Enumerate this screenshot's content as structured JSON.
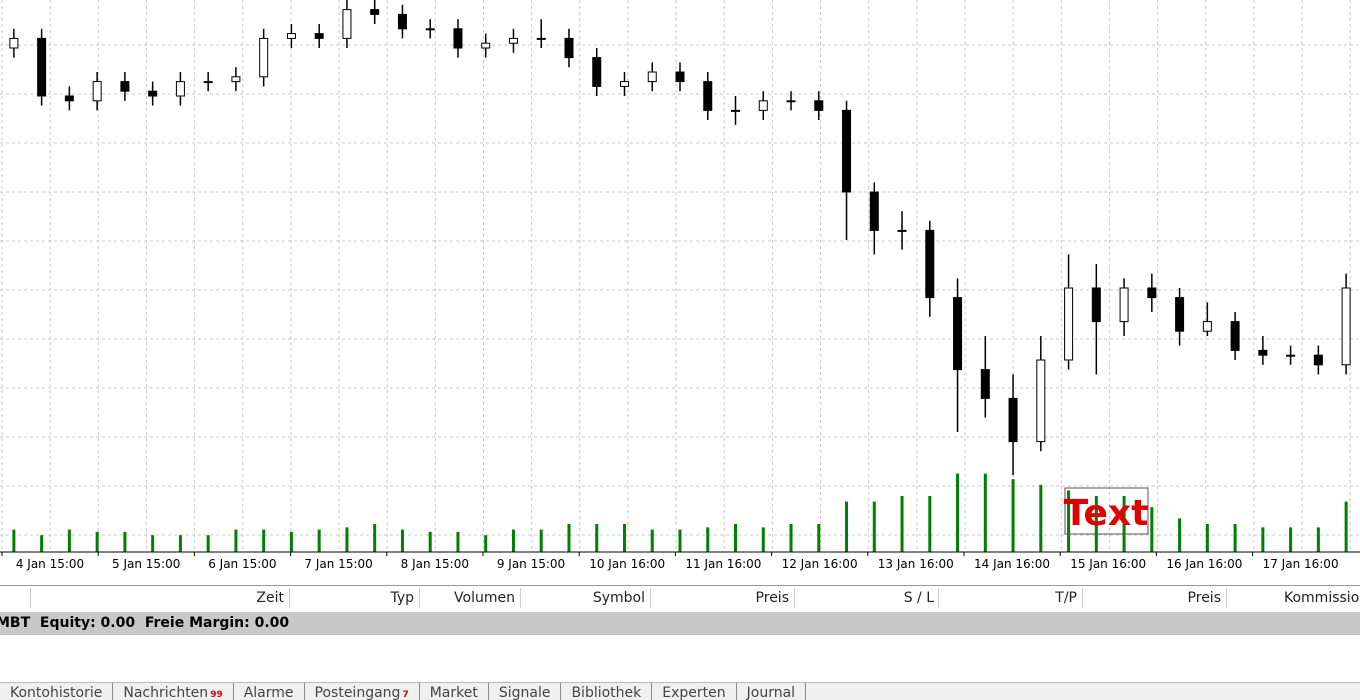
{
  "chart_data": {
    "type": "candlestick",
    "candles": [
      [
        90,
        94,
        88,
        92
      ],
      [
        92,
        94,
        78,
        80
      ],
      [
        80,
        82,
        77,
        79
      ],
      [
        79,
        85,
        77,
        83
      ],
      [
        83,
        85,
        79,
        81
      ],
      [
        81,
        83,
        78,
        80
      ],
      [
        80,
        85,
        78,
        83
      ],
      [
        83,
        85,
        81,
        83
      ],
      [
        83,
        86,
        81,
        84
      ],
      [
        84,
        94,
        82,
        92
      ],
      [
        92,
        95,
        90,
        93
      ],
      [
        93,
        95,
        90,
        92
      ],
      [
        92,
        100,
        90,
        98
      ],
      [
        98,
        100,
        95,
        97
      ],
      [
        97,
        99,
        92,
        94
      ],
      [
        94,
        96,
        92,
        94
      ],
      [
        94,
        96,
        88,
        90
      ],
      [
        90,
        93,
        88,
        91
      ],
      [
        91,
        94,
        89,
        92
      ],
      [
        92,
        96,
        90,
        92
      ],
      [
        92,
        94,
        86,
        88
      ],
      [
        88,
        90,
        80,
        82
      ],
      [
        82,
        85,
        80,
        83
      ],
      [
        83,
        87,
        81,
        85
      ],
      [
        85,
        87,
        81,
        83
      ],
      [
        83,
        85,
        75,
        77
      ],
      [
        77,
        80,
        74,
        77
      ],
      [
        77,
        81,
        75,
        79
      ],
      [
        79,
        81,
        77,
        79
      ],
      [
        79,
        81,
        75,
        77
      ],
      [
        77,
        79,
        50,
        60
      ],
      [
        60,
        62,
        47,
        52
      ],
      [
        52,
        56,
        48,
        52
      ],
      [
        52,
        54,
        34,
        38
      ],
      [
        38,
        42,
        10,
        23
      ],
      [
        23,
        30,
        13,
        17
      ],
      [
        17,
        22,
        1,
        8
      ],
      [
        8,
        30,
        6,
        25
      ],
      [
        25,
        47,
        23,
        40
      ],
      [
        40,
        45,
        22,
        33
      ],
      [
        33,
        42,
        30,
        40
      ],
      [
        40,
        43,
        35,
        38
      ],
      [
        38,
        40,
        28,
        31
      ],
      [
        31,
        37,
        30,
        33
      ],
      [
        33,
        35,
        25,
        27
      ],
      [
        27,
        30,
        24,
        26
      ],
      [
        26,
        28,
        24,
        26
      ],
      [
        26,
        28,
        22,
        24
      ],
      [
        24,
        43,
        22,
        40
      ]
    ],
    "volumes": [
      20,
      15,
      20,
      18,
      18,
      15,
      15,
      15,
      20,
      20,
      18,
      20,
      22,
      25,
      20,
      18,
      18,
      15,
      20,
      20,
      25,
      25,
      25,
      20,
      20,
      22,
      25,
      22,
      25,
      25,
      45,
      45,
      50,
      50,
      70,
      70,
      65,
      60,
      55,
      50,
      50,
      40,
      30,
      25,
      25,
      22,
      22,
      22,
      45
    ],
    "ylim": [
      0,
      100
    ],
    "volume_ylim": [
      0,
      100
    ],
    "x_labels": [
      "4 Jan 15:00",
      "5 Jan 15:00",
      "6 Jan 15:00",
      "7 Jan 15:00",
      "8 Jan 15:00",
      "9 Jan 15:00",
      "10 Jan 16:00",
      "11 Jan 16:00",
      "12 Jan 16:00",
      "13 Jan 16:00",
      "14 Jan 16:00",
      "15 Jan 16:00",
      "16 Jan 16:00",
      "17 Jan 16:00"
    ],
    "annotation": "Text",
    "grid": true,
    "volume_color": "#008000"
  },
  "table": {
    "columns": [
      "Zeit",
      "Typ",
      "Volumen",
      "Symbol",
      "Preis",
      "S / L",
      "T/P",
      "Preis",
      "Kommission"
    ]
  },
  "status": "MBT  Equity: 0.00  Freie Margin: 0.00",
  "tabs": [
    {
      "label": "Kontohistorie"
    },
    {
      "label": "Nachrichten",
      "badge": 99
    },
    {
      "label": "Alarme"
    },
    {
      "label": "Posteingang",
      "badge": 7
    },
    {
      "label": "Market"
    },
    {
      "label": "Signale"
    },
    {
      "label": "Bibliothek"
    },
    {
      "label": "Experten"
    },
    {
      "label": "Journal"
    }
  ]
}
